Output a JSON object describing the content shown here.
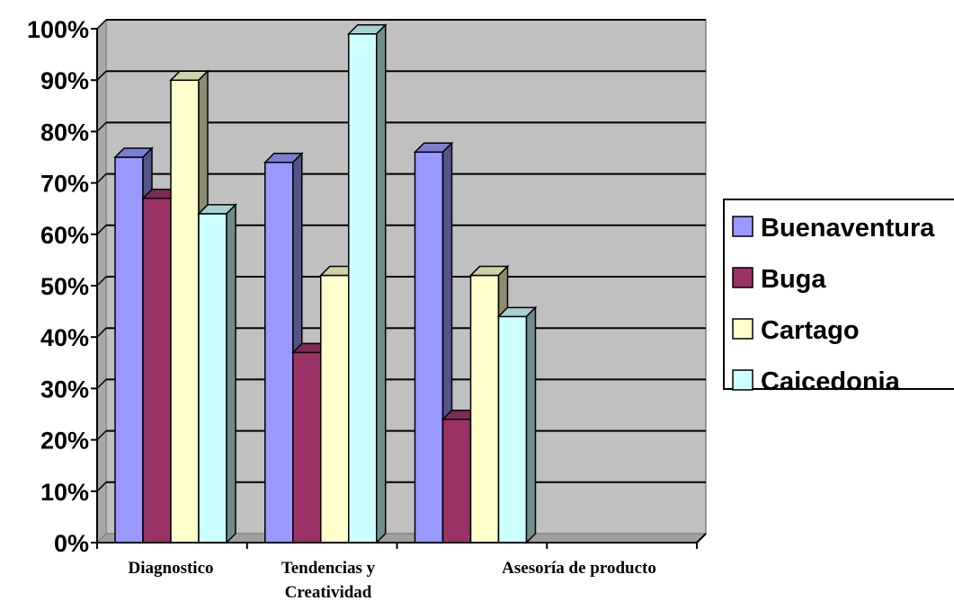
{
  "chart_data": {
    "type": "bar",
    "categories": [
      [
        "Diagnostico"
      ],
      [
        "Tendencias y",
        "Creatividad"
      ],
      [
        "Asesoría de producto"
      ]
    ],
    "series": [
      {
        "name": "Buenaventura",
        "color": "#9999FF",
        "values": [
          75,
          74,
          76
        ]
      },
      {
        "name": "Buga",
        "color": "#993366",
        "values": [
          67,
          37,
          24
        ]
      },
      {
        "name": "Cartago",
        "color": "#FFFFCC",
        "values": [
          90,
          52,
          52
        ]
      },
      {
        "name": "Caicedonia",
        "color": "#CCFFFF",
        "values": [
          64,
          99,
          44
        ]
      }
    ],
    "ylim": [
      0,
      100
    ],
    "y_ticks": [
      "0%",
      "10%",
      "20%",
      "30%",
      "40%",
      "50%",
      "60%",
      "70%",
      "80%",
      "90%",
      "100%"
    ],
    "grid": true,
    "legend_position": "right",
    "style": "3d-clustered-column",
    "plot_background": "#C0C0C0"
  }
}
